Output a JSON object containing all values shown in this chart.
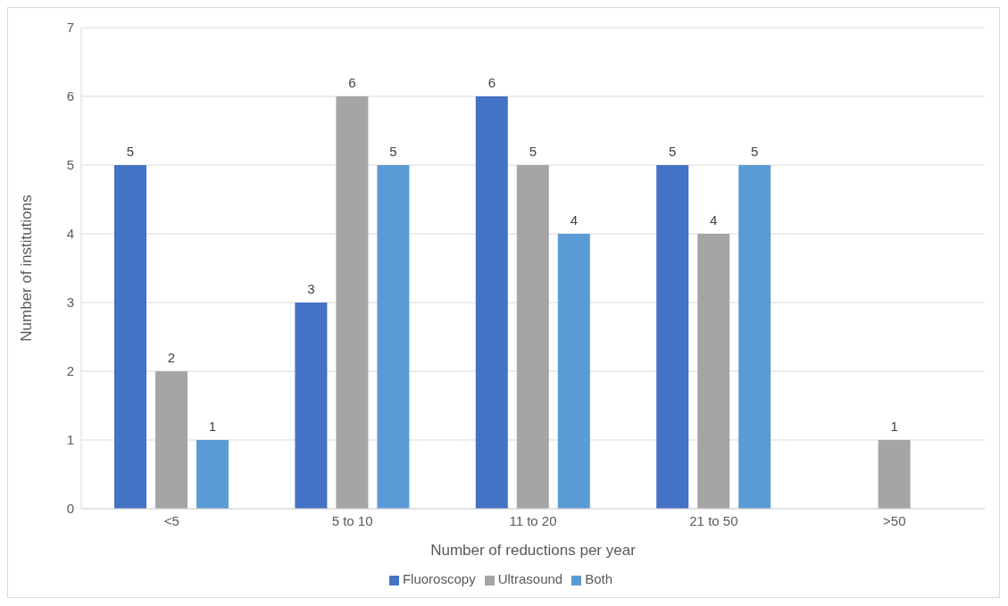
{
  "chart_data": {
    "type": "bar",
    "xlabel": "Number of reductions per year",
    "ylabel": "Number of institutions",
    "categories": [
      "<5",
      "5 to 10",
      "11 to 20",
      "21 to 50",
      ">50"
    ],
    "series": [
      {
        "name": "Fluoroscopy",
        "color": "#4472c4",
        "values": [
          5,
          3,
          6,
          5,
          null
        ]
      },
      {
        "name": "Ultrasound",
        "color": "#a5a5a5",
        "values": [
          2,
          6,
          5,
          4,
          1
        ]
      },
      {
        "name": "Both",
        "color": "#5b9bd5",
        "values": [
          1,
          5,
          4,
          5,
          null
        ]
      }
    ],
    "ylim": [
      0,
      7
    ],
    "yticks": [
      0,
      1,
      2,
      3,
      4,
      5,
      6,
      7
    ],
    "grid": "y",
    "legend": "bottom",
    "data_labels": true
  }
}
